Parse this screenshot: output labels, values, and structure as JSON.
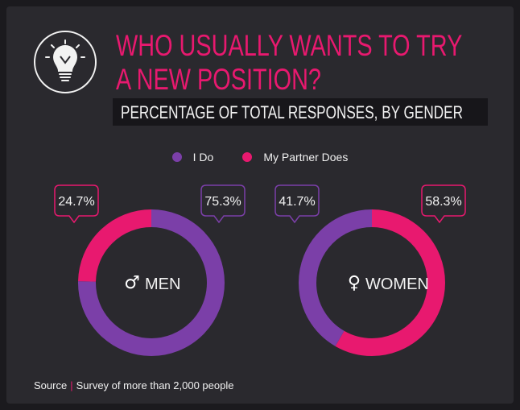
{
  "header": {
    "title_line1": "WHO USUALLY WANTS TO TRY",
    "title_line2": "A NEW POSITION?",
    "subtitle": "PERCENTAGE OF TOTAL RESPONSES, BY GENDER",
    "icon": "lightbulb-icon"
  },
  "legend": [
    {
      "label": "I Do",
      "color": "#7b3fa8"
    },
    {
      "label": "My Partner Does",
      "color": "#e8196f"
    }
  ],
  "colors": {
    "purple": "#7b3fa8",
    "pink": "#e8196f"
  },
  "chart_data": [
    {
      "type": "pie",
      "title": "MEN",
      "symbol": "♂",
      "categories": [
        "I Do",
        "My Partner Does"
      ],
      "values": [
        75.3,
        24.7
      ],
      "labels": [
        "75.3%",
        "24.7%"
      ]
    },
    {
      "type": "pie",
      "title": "WOMEN",
      "symbol": "♀",
      "categories": [
        "I Do",
        "My Partner Does"
      ],
      "values": [
        41.7,
        58.3
      ],
      "labels": [
        "41.7%",
        "58.3%"
      ]
    }
  ],
  "footer": {
    "source_label": "Source",
    "separator": "|",
    "source_text": "Survey of more than 2,000 people"
  }
}
